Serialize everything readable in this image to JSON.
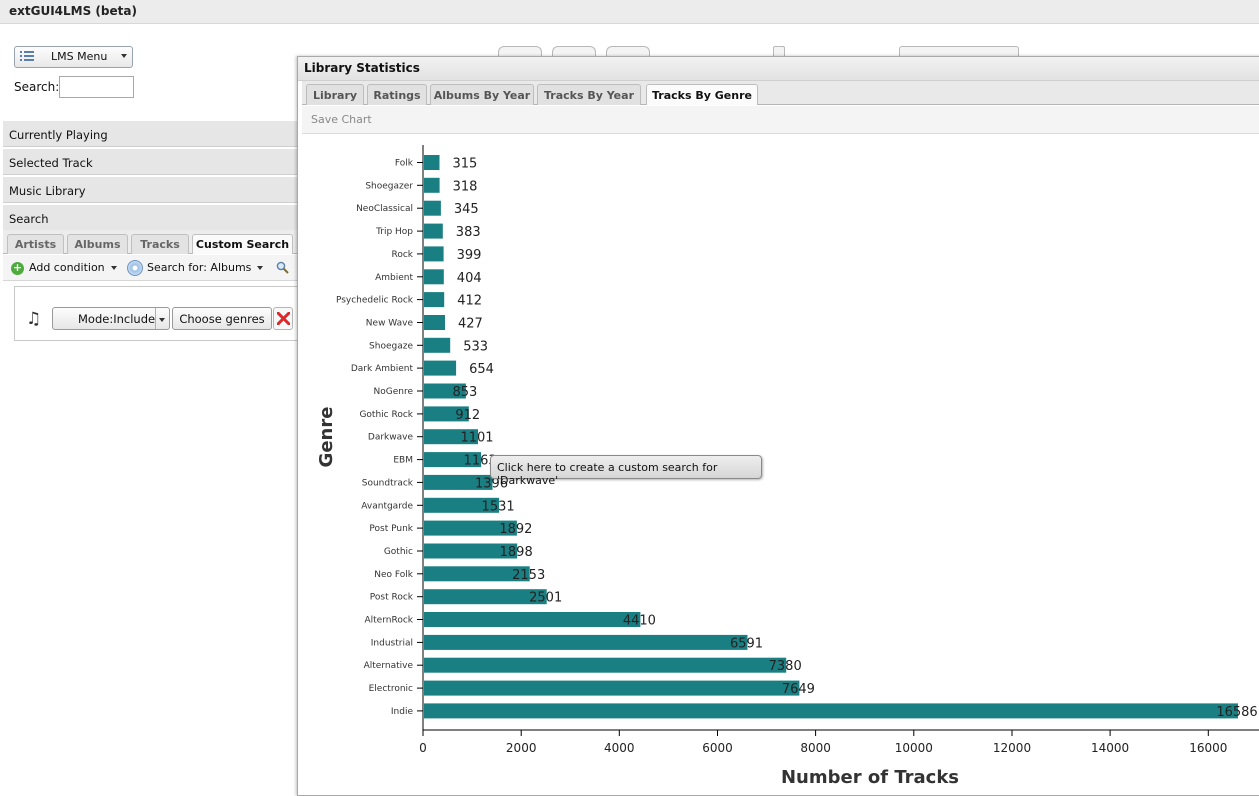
{
  "app": {
    "title": "extGUI4LMS (beta)"
  },
  "left": {
    "menu_label": "LMS Menu",
    "search_label": "Search:",
    "search_value": "",
    "sections": [
      "Currently Playing",
      "Selected Track",
      "Music Library",
      "Search"
    ],
    "tabs": [
      "Artists",
      "Albums",
      "Tracks",
      "Custom Search"
    ],
    "active_tab": "Custom Search",
    "toolbar": {
      "add_condition": "Add condition",
      "search_for": "Search for: Albums"
    },
    "condition": {
      "mode": "Mode:Include",
      "choose": "Choose genres"
    }
  },
  "dialog": {
    "title": "Library Statistics",
    "tabs": [
      "Library",
      "Ratings",
      "Albums By Year",
      "Tracks By Year",
      "Tracks By Genre"
    ],
    "active_tab": "Tracks By Genre",
    "save_chart": "Save Chart",
    "tooltip": "Click here to create a custom search for 'Darkwave'"
  },
  "colors": {
    "bar": "#1a7f82",
    "accent": "#4cad3c",
    "delete": "#d92b2b"
  },
  "chart_data": {
    "type": "bar",
    "orientation": "horizontal",
    "xlabel": "Number of Tracks",
    "ylabel": "Genre",
    "xlim": [
      0,
      16586
    ],
    "xticks": [
      "0",
      "2000",
      "4000",
      "6000",
      "8000",
      "10000",
      "12000",
      "14000",
      "16000"
    ],
    "categories": [
      "Folk",
      "Shoegazer",
      "NeoClassical",
      "Trip Hop",
      "Rock",
      "Ambient",
      "Psychedelic Rock",
      "New Wave",
      "Shoegaze",
      "Dark Ambient",
      "NoGenre",
      "Gothic Rock",
      "Darkwave",
      "EBM",
      "Soundtrack",
      "Avantgarde",
      "Post Punk",
      "Gothic",
      "Neo Folk",
      "Post Rock",
      "AlternRock",
      "Industrial",
      "Alternative",
      "Electronic",
      "Indie"
    ],
    "values": [
      315,
      318,
      345,
      383,
      399,
      404,
      412,
      427,
      533,
      654,
      853,
      912,
      1101,
      1163,
      1396,
      1531,
      1892,
      1898,
      2153,
      2501,
      4410,
      6591,
      7380,
      7649,
      16586
    ]
  }
}
